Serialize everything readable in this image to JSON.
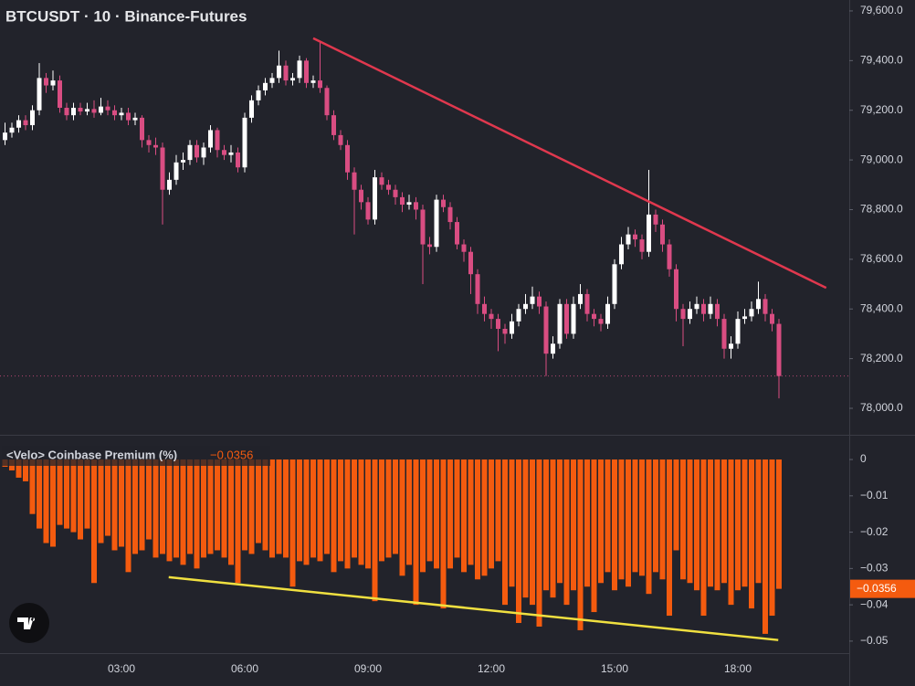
{
  "chart_data": [
    {
      "type": "candlestick",
      "title": "BTCUSDT · 10 · Binance-Futures",
      "x": [
        10,
        20,
        30,
        40,
        50,
        60,
        70,
        80,
        90,
        100,
        110,
        120,
        130,
        140,
        150,
        160,
        170,
        180,
        190,
        200,
        210,
        220,
        230,
        240,
        250,
        260,
        270,
        280,
        290,
        300,
        310,
        320,
        330,
        340,
        350,
        360,
        370,
        380,
        390,
        400,
        410,
        420,
        430,
        440,
        450,
        460,
        470,
        480,
        490,
        500,
        510,
        520,
        530,
        540,
        550,
        560,
        570,
        580,
        590,
        600,
        610,
        620,
        630,
        640,
        650,
        660,
        670,
        680,
        690,
        700,
        710,
        720,
        730,
        740,
        750,
        760,
        770,
        780,
        790,
        800,
        810,
        820,
        830,
        840,
        850,
        860,
        870,
        880,
        890,
        900,
        910,
        920,
        930,
        940,
        950,
        960,
        970,
        980,
        990,
        1000,
        1010,
        1020,
        1030,
        1040,
        1050,
        1060,
        1070,
        1080,
        1090,
        1100,
        1110,
        1120,
        1130,
        1140
      ],
      "ohlc": [
        [
          79080,
          79150,
          79060,
          79110
        ],
        [
          79110,
          79150,
          79090,
          79130
        ],
        [
          79130,
          79180,
          79110,
          79160
        ],
        [
          79160,
          79180,
          79120,
          79140
        ],
        [
          79140,
          79220,
          79120,
          79200
        ],
        [
          79200,
          79390,
          79180,
          79330
        ],
        [
          79330,
          79350,
          79270,
          79300
        ],
        [
          79300,
          79360,
          79280,
          79320
        ],
        [
          79320,
          79340,
          79190,
          79210
        ],
        [
          79210,
          79230,
          79160,
          79180
        ],
        [
          79180,
          79230,
          79160,
          79210
        ],
        [
          79210,
          79230,
          79180,
          79195
        ],
        [
          79195,
          79230,
          79180,
          79205
        ],
        [
          79205,
          79240,
          79170,
          79190
        ],
        [
          79190,
          79250,
          79180,
          79215
        ],
        [
          79215,
          79240,
          79180,
          79200
        ],
        [
          79200,
          79220,
          79160,
          79180
        ],
        [
          79180,
          79210,
          79160,
          79190
        ],
        [
          79190,
          79210,
          79140,
          79160
        ],
        [
          79160,
          79190,
          79140,
          79170
        ],
        [
          79170,
          79180,
          79050,
          79080
        ],
        [
          79080,
          79100,
          79030,
          79060
        ],
        [
          79060,
          79090,
          79020,
          79050
        ],
        [
          79050,
          79070,
          78740,
          78880
        ],
        [
          78880,
          78950,
          78860,
          78920
        ],
        [
          78920,
          79020,
          78900,
          78990
        ],
        [
          78990,
          79030,
          78960,
          79000
        ],
        [
          79000,
          79080,
          78980,
          79060
        ],
        [
          79060,
          79080,
          78990,
          79010
        ],
        [
          79010,
          79070,
          78980,
          79050
        ],
        [
          79050,
          79140,
          79030,
          79120
        ],
        [
          79120,
          79130,
          79010,
          79040
        ],
        [
          79040,
          79060,
          79000,
          79020
        ],
        [
          79020,
          79060,
          78990,
          79030
        ],
        [
          79030,
          79050,
          78950,
          78970
        ],
        [
          78970,
          79190,
          78950,
          79170
        ],
        [
          79170,
          79260,
          79150,
          79240
        ],
        [
          79240,
          79300,
          79220,
          79280
        ],
        [
          79280,
          79330,
          79260,
          79310
        ],
        [
          79310,
          79350,
          79290,
          79330
        ],
        [
          79330,
          79440,
          79310,
          79380
        ],
        [
          79380,
          79400,
          79300,
          79320
        ],
        [
          79320,
          79350,
          79300,
          79330
        ],
        [
          79330,
          79420,
          79310,
          79400
        ],
        [
          79400,
          79410,
          79290,
          79310
        ],
        [
          79310,
          79340,
          79290,
          79320
        ],
        [
          79320,
          79480,
          79270,
          79290
        ],
        [
          79290,
          79300,
          79160,
          79180
        ],
        [
          79180,
          79200,
          79080,
          79100
        ],
        [
          79100,
          79120,
          79040,
          79060
        ],
        [
          79060,
          79080,
          78920,
          78950
        ],
        [
          78950,
          78970,
          78700,
          78880
        ],
        [
          78880,
          78900,
          78800,
          78830
        ],
        [
          78830,
          78850,
          78740,
          78760
        ],
        [
          78760,
          78960,
          78740,
          78930
        ],
        [
          78930,
          78950,
          78880,
          78900
        ],
        [
          78900,
          78920,
          78860,
          78880
        ],
        [
          78880,
          78900,
          78820,
          78850
        ],
        [
          78850,
          78870,
          78790,
          78820
        ],
        [
          78820,
          78860,
          78800,
          78830
        ],
        [
          78830,
          78850,
          78760,
          78800
        ],
        [
          78800,
          78820,
          78500,
          78660
        ],
        [
          78660,
          78690,
          78620,
          78650
        ],
        [
          78650,
          78860,
          78630,
          78840
        ],
        [
          78840,
          78860,
          78790,
          78810
        ],
        [
          78810,
          78830,
          78720,
          78750
        ],
        [
          78750,
          78770,
          78640,
          78660
        ],
        [
          78660,
          78680,
          78590,
          78630
        ],
        [
          78630,
          78650,
          78460,
          78540
        ],
        [
          78540,
          78560,
          78380,
          78420
        ],
        [
          78420,
          78450,
          78350,
          78380
        ],
        [
          78380,
          78400,
          78320,
          78360
        ],
        [
          78360,
          78380,
          78230,
          78320
        ],
        [
          78320,
          78340,
          78260,
          78300
        ],
        [
          78300,
          78380,
          78280,
          78350
        ],
        [
          78350,
          78420,
          78330,
          78400
        ],
        [
          78400,
          78460,
          78380,
          78420
        ],
        [
          78420,
          78490,
          78400,
          78450
        ],
        [
          78450,
          78470,
          78380,
          78410
        ],
        [
          78410,
          78430,
          78130,
          78220
        ],
        [
          78220,
          78290,
          78200,
          78260
        ],
        [
          78260,
          78440,
          78240,
          78420
        ],
        [
          78420,
          78440,
          78280,
          78300
        ],
        [
          78300,
          78450,
          78280,
          78420
        ],
        [
          78420,
          78500,
          78400,
          78460
        ],
        [
          78460,
          78480,
          78350,
          78380
        ],
        [
          78380,
          78400,
          78330,
          78360
        ],
        [
          78360,
          78380,
          78310,
          78340
        ],
        [
          78340,
          78450,
          78320,
          78420
        ],
        [
          78420,
          78600,
          78400,
          78580
        ],
        [
          78580,
          78690,
          78560,
          78660
        ],
        [
          78660,
          78730,
          78640,
          78700
        ],
        [
          78700,
          78720,
          78650,
          78680
        ],
        [
          78680,
          78700,
          78600,
          78630
        ],
        [
          78630,
          78960,
          78610,
          78780
        ],
        [
          78780,
          78800,
          78710,
          78740
        ],
        [
          78740,
          78760,
          78630,
          78660
        ],
        [
          78660,
          78680,
          78530,
          78560
        ],
        [
          78560,
          78580,
          78350,
          78400
        ],
        [
          78400,
          78420,
          78250,
          78360
        ],
        [
          78360,
          78430,
          78340,
          78400
        ],
        [
          78400,
          78450,
          78380,
          78420
        ],
        [
          78420,
          78440,
          78350,
          78380
        ],
        [
          78380,
          78450,
          78360,
          78420
        ],
        [
          78420,
          78440,
          78330,
          78360
        ],
        [
          78360,
          78380,
          78200,
          78240
        ],
        [
          78240,
          78290,
          78200,
          78260
        ],
        [
          78260,
          78390,
          78240,
          78360
        ],
        [
          78360,
          78400,
          78340,
          78370
        ],
        [
          78370,
          78430,
          78350,
          78400
        ],
        [
          78400,
          78510,
          78380,
          78440
        ],
        [
          78440,
          78460,
          78350,
          78380
        ],
        [
          78380,
          78400,
          78310,
          78340
        ],
        [
          78340,
          78360,
          78040,
          78130
        ]
      ],
      "up_color": "#ffffff",
      "down_color": "#d94d82",
      "xlim": [
        2.67,
        1242.67
      ],
      "xticks": [
        {
          "value": 180,
          "label": "03:00"
        },
        {
          "value": 360,
          "label": "06:00"
        },
        {
          "value": 540,
          "label": "09:00"
        },
        {
          "value": 720,
          "label": "12:00"
        },
        {
          "value": 900,
          "label": "15:00"
        },
        {
          "value": 1080,
          "label": "18:00"
        }
      ],
      "ylim": [
        77897,
        79644
      ],
      "yticks": [
        {
          "value": 78000,
          "label": "78,000.0"
        },
        {
          "value": 78200,
          "label": "78,200.0"
        },
        {
          "value": 78400,
          "label": "78,400.0"
        },
        {
          "value": 78600,
          "label": "78,600.0"
        },
        {
          "value": 78800,
          "label": "78,800.0"
        },
        {
          "value": 79000,
          "label": "79,000.0"
        },
        {
          "value": 79200,
          "label": "79,200.0"
        },
        {
          "value": 79400,
          "label": "79,400.0"
        },
        {
          "value": 79600,
          "label": "79,600.0"
        }
      ],
      "trendline": {
        "x": [
          460,
          1209
        ],
        "y": [
          79490,
          78485
        ],
        "color": "#e0384e"
      }
    },
    {
      "type": "bar",
      "title": "<Velo> Coinbase Premium (%)",
      "color": "#f45b0f",
      "x": [
        10,
        20,
        30,
        40,
        50,
        60,
        70,
        80,
        90,
        100,
        110,
        120,
        130,
        140,
        150,
        160,
        170,
        180,
        190,
        200,
        210,
        220,
        230,
        240,
        250,
        260,
        270,
        280,
        290,
        300,
        310,
        320,
        330,
        340,
        350,
        360,
        370,
        380,
        390,
        400,
        410,
        420,
        430,
        440,
        450,
        460,
        470,
        480,
        490,
        500,
        510,
        520,
        530,
        540,
        550,
        560,
        570,
        580,
        590,
        600,
        610,
        620,
        630,
        640,
        650,
        660,
        670,
        680,
        690,
        700,
        710,
        720,
        730,
        740,
        750,
        760,
        770,
        780,
        790,
        800,
        810,
        820,
        830,
        840,
        850,
        860,
        870,
        880,
        890,
        900,
        910,
        920,
        930,
        940,
        950,
        960,
        970,
        980,
        990,
        1000,
        1010,
        1020,
        1030,
        1040,
        1050,
        1060,
        1070,
        1080,
        1090,
        1100,
        1110,
        1120,
        1130,
        1140
      ],
      "values": [
        -0.002,
        -0.003,
        -0.005,
        -0.006,
        -0.015,
        -0.019,
        -0.023,
        -0.024,
        -0.018,
        -0.019,
        -0.02,
        -0.022,
        -0.019,
        -0.034,
        -0.023,
        -0.021,
        -0.025,
        -0.024,
        -0.031,
        -0.026,
        -0.025,
        -0.022,
        -0.027,
        -0.026,
        -0.028,
        -0.027,
        -0.029,
        -0.026,
        -0.03,
        -0.027,
        -0.026,
        -0.025,
        -0.027,
        -0.029,
        -0.034,
        -0.025,
        -0.026,
        -0.023,
        -0.025,
        -0.027,
        -0.026,
        -0.027,
        -0.035,
        -0.028,
        -0.029,
        -0.027,
        -0.028,
        -0.026,
        -0.031,
        -0.028,
        -0.03,
        -0.027,
        -0.029,
        -0.03,
        -0.039,
        -0.028,
        -0.027,
        -0.026,
        -0.032,
        -0.029,
        -0.04,
        -0.031,
        -0.028,
        -0.03,
        -0.041,
        -0.03,
        -0.027,
        -0.031,
        -0.029,
        -0.033,
        -0.032,
        -0.03,
        -0.028,
        -0.04,
        -0.035,
        -0.045,
        -0.038,
        -0.04,
        -0.046,
        -0.036,
        -0.038,
        -0.034,
        -0.04,
        -0.036,
        -0.047,
        -0.035,
        -0.042,
        -0.034,
        -0.031,
        -0.036,
        -0.033,
        -0.035,
        -0.031,
        -0.032,
        -0.037,
        -0.031,
        -0.033,
        -0.043,
        -0.025,
        -0.033,
        -0.034,
        -0.036,
        -0.043,
        -0.035,
        -0.036,
        -0.034,
        -0.04,
        -0.036,
        -0.035,
        -0.041,
        -0.034,
        -0.048,
        -0.043,
        -0.0356
      ],
      "last_value_label": "−0.0356",
      "ylim": [
        -0.0533,
        0.0063
      ],
      "yticks": [
        0,
        {
          "value": -0.01,
          "label": "−0.01"
        },
        {
          "value": -0.02,
          "label": "−0.02"
        },
        {
          "value": -0.03,
          "label": "−0.03"
        },
        {
          "value": -0.04,
          "label": "−0.04"
        },
        {
          "value": -0.05,
          "label": "−0.05"
        }
      ],
      "trendline": {
        "x": [
          249,
          1139
        ],
        "y": [
          -0.0324,
          -0.0497
        ],
        "color": "#f0e040"
      }
    }
  ]
}
